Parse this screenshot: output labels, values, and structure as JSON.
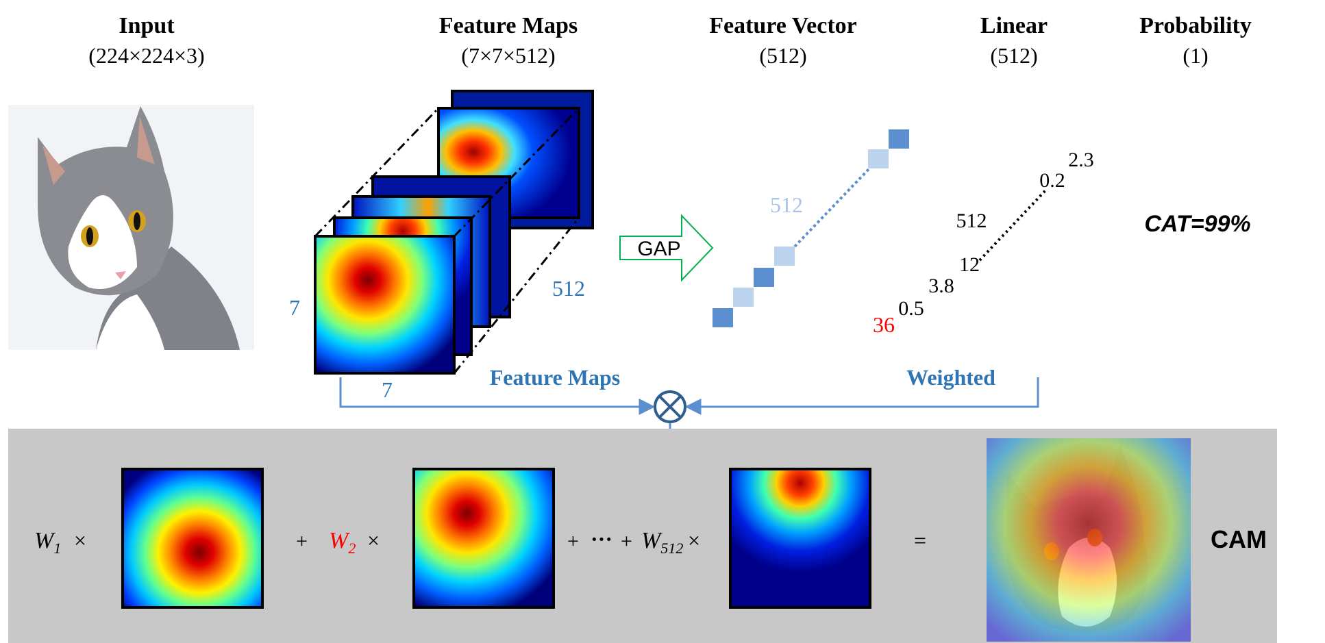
{
  "headers": [
    {
      "id": "input",
      "title": "Input",
      "dims": "(224×224×3)"
    },
    {
      "id": "feature-maps",
      "title": "Feature Maps",
      "dims": "(7×7×512)"
    },
    {
      "id": "feature-vector",
      "title": "Feature Vector",
      "dims": "(512)"
    },
    {
      "id": "linear",
      "title": "Linear",
      "dims": "(512)"
    },
    {
      "id": "probability",
      "title": "Probability",
      "dims": "(1)"
    }
  ],
  "stack_labels": {
    "height": "7",
    "width": "7",
    "depth": "512"
  },
  "gap_label": "GAP",
  "vector_label": "512",
  "weights": {
    "w36": "36",
    "w05": "0.5",
    "w38": "3.8",
    "w12": "12",
    "w512": "512",
    "w02": "0.2",
    "w23": "2.3"
  },
  "prediction": "CAT=99%",
  "connectors": {
    "left": "Feature Maps",
    "right": "Weighted",
    "operator": "⊗"
  },
  "equation": {
    "w1": "W",
    "w1_sub": "1",
    "times": "×",
    "plus": "+",
    "w2": "W",
    "w2_sub": "2",
    "dots": "···",
    "w512": "W",
    "w512_sub": "512",
    "equals": "=",
    "result": "CAM"
  },
  "colors": {
    "accent_blue": "#2e75b6",
    "highlight_red": "#ff0000",
    "gap_green": "#00b050",
    "panel_gray": "#c8c8c8"
  }
}
